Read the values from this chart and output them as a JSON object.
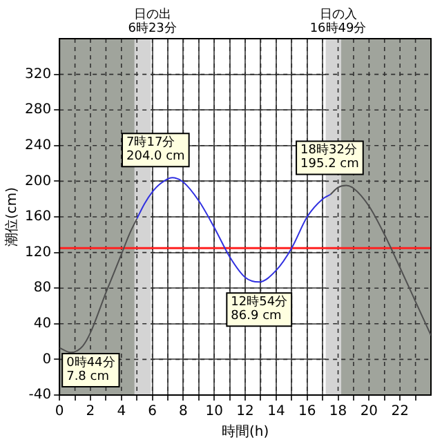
{
  "chart_data": {
    "type": "line",
    "xlabel": "時間(h)",
    "ylabel": "潮位(cm)",
    "xlim": [
      0,
      24
    ],
    "xticks": [
      0,
      {
        "value": 1,
        "label": null
      },
      2,
      {
        "value": 3,
        "label": null
      },
      4,
      {
        "value": 5,
        "label": null
      },
      6,
      {
        "value": 7,
        "label": null
      },
      8,
      {
        "value": 9,
        "label": null
      },
      10,
      {
        "value": 11,
        "label": null
      },
      12,
      {
        "value": 13,
        "label": null
      },
      14,
      {
        "value": 15,
        "label": null
      },
      16,
      {
        "value": 17,
        "label": null
      },
      18,
      {
        "value": 19,
        "label": null
      },
      20,
      {
        "value": 21,
        "label": null
      },
      22,
      {
        "value": 23,
        "label": null
      }
    ],
    "ylim": [
      -40,
      360
    ],
    "yticks": [
      -40,
      0,
      40,
      80,
      120,
      160,
      200,
      240,
      280,
      320
    ],
    "grid": true,
    "legend": false,
    "marker": "none",
    "line_style": "solid",
    "series": [
      {
        "color": "#505050",
        "x": [
          0,
          0.73,
          1.5,
          2,
          3,
          4,
          4.5,
          5
        ],
        "values": [
          13,
          7.8,
          15,
          30,
          75,
          118,
          140,
          158
        ]
      },
      {
        "color": "#3030e0",
        "x": [
          5,
          5.5,
          6,
          6.5,
          7.28,
          8,
          9,
          10,
          11,
          12,
          12.9,
          14,
          15,
          16,
          17,
          17.5
        ],
        "values": [
          158,
          175,
          188,
          197,
          204,
          199,
          178,
          148,
          115,
          92,
          86.9,
          100,
          125,
          160,
          180,
          185
        ]
      },
      {
        "color": "#505050",
        "x": [
          17.5,
          18,
          18.53,
          19,
          20,
          21,
          22,
          23,
          24
        ],
        "values": [
          185,
          193,
          195.2,
          192,
          172,
          140,
          103,
          65,
          27
        ]
      }
    ],
    "bands": [
      {
        "axis": "x",
        "from": 0,
        "to": 4.85,
        "color": "#a0a49c"
      },
      {
        "axis": "x",
        "from": 4.85,
        "to": 5.9,
        "color": "#d4d4d4"
      },
      {
        "axis": "x",
        "from": 17.2,
        "to": 18.2,
        "color": "#d4d4d4"
      },
      {
        "axis": "x",
        "from": 18.2,
        "to": 24,
        "color": "#a0a49c"
      }
    ],
    "ref_lines": [
      {
        "axis": "y",
        "value": 125,
        "color": "#ff2020"
      }
    ],
    "annotations": [
      "日の出\n6時23分",
      "日の入\n16時49分",
      {
        "text": "7時17分\n204.0 cm",
        "x": 7.28,
        "y": 204
      },
      {
        "text": "12時54分\n86.9 cm",
        "x": 12.9,
        "y": 86.9
      },
      {
        "text": "18時32分\n195.2 cm",
        "x": 18.53,
        "y": 195.2
      },
      {
        "text": "0時44分\n7.8 cm",
        "x": 0.73,
        "y": 7.8
      }
    ]
  }
}
